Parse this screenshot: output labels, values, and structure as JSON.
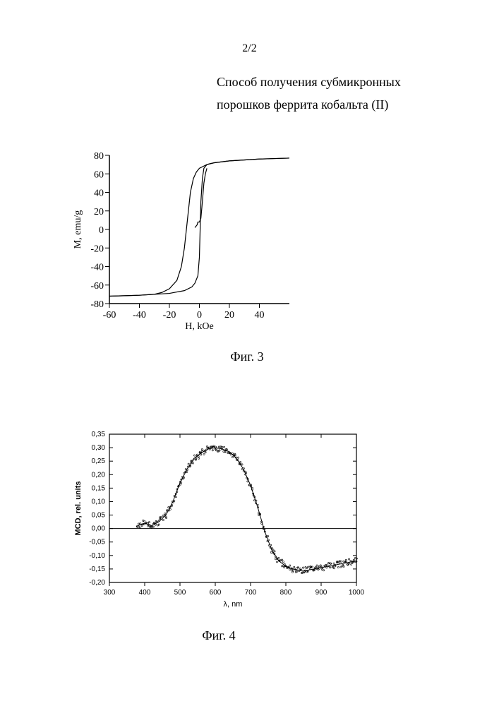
{
  "page": {
    "number": "2/2",
    "title_line1": "Способ получения субмикронных",
    "title_line2": "порошков феррита кобальта (II)"
  },
  "fig3": {
    "caption": "Фиг. 3",
    "type": "line-hysteresis",
    "xlabel": "H, kOe",
    "ylabel": "M, emu/g",
    "xlim": [
      -60,
      60
    ],
    "ylim": [
      -80,
      80
    ],
    "xticks": [
      -60,
      -40,
      -20,
      0,
      20,
      40
    ],
    "yticks": [
      -80,
      -60,
      -40,
      -20,
      0,
      20,
      40,
      60,
      80
    ],
    "line_color": "#000000",
    "line_width": 1.2,
    "background_color": "#ffffff",
    "tick_fontsize": 14,
    "label_fontsize": 14,
    "upper_branch": [
      [
        -60,
        -72
      ],
      [
        -50,
        -71.5
      ],
      [
        -40,
        -71
      ],
      [
        -30,
        -70
      ],
      [
        -25,
        -68
      ],
      [
        -20,
        -64
      ],
      [
        -15,
        -55
      ],
      [
        -12,
        -40
      ],
      [
        -10,
        -20
      ],
      [
        -8,
        10
      ],
      [
        -6,
        40
      ],
      [
        -4,
        55
      ],
      [
        -2,
        62
      ],
      [
        0,
        66
      ],
      [
        5,
        70
      ],
      [
        10,
        72
      ],
      [
        20,
        74
      ],
      [
        40,
        76
      ],
      [
        60,
        77
      ]
    ],
    "lower_branch": [
      [
        60,
        77
      ],
      [
        40,
        76
      ],
      [
        20,
        74
      ],
      [
        10,
        72
      ],
      [
        7,
        71
      ],
      [
        5,
        70
      ],
      [
        3,
        66
      ],
      [
        2,
        55
      ],
      [
        1,
        30
      ],
      [
        0.5,
        0
      ],
      [
        0,
        -30
      ],
      [
        -1,
        -50
      ],
      [
        -3,
        -58
      ],
      [
        -5,
        -62
      ],
      [
        -10,
        -66
      ],
      [
        -20,
        -69
      ],
      [
        -40,
        -71
      ],
      [
        -60,
        -72
      ]
    ],
    "virgin_curve": [
      [
        -3,
        2
      ],
      [
        -2,
        4
      ],
      [
        -1.5,
        5
      ],
      [
        -1,
        8
      ],
      [
        0,
        8
      ],
      [
        1,
        12
      ],
      [
        2,
        30
      ],
      [
        3,
        50
      ],
      [
        4,
        60
      ],
      [
        5,
        66
      ]
    ]
  },
  "fig4": {
    "caption": "Фиг. 4",
    "type": "scatter-line",
    "xlabel": "λ, nm",
    "ylabel": "MCD, rel. units",
    "xlim": [
      300,
      1000
    ],
    "ylim": [
      -0.2,
      0.35
    ],
    "xticks": [
      300,
      400,
      500,
      600,
      700,
      800,
      900,
      1000
    ],
    "yticks_labels": [
      "-0,20",
      "-0,15",
      "-0,10",
      "-0,05",
      "0,00",
      "0,05",
      "0,10",
      "0,15",
      "0,20",
      "0,25",
      "0,30",
      "0,35"
    ],
    "yticks": [
      -0.2,
      -0.15,
      -0.1,
      -0.05,
      0.0,
      0.05,
      0.1,
      0.15,
      0.2,
      0.25,
      0.3,
      0.35
    ],
    "line_color": "#000000",
    "marker_color": "#000000",
    "marker_size": 2.2,
    "line_width": 1.0,
    "grid": false,
    "background_color": "#ffffff",
    "tick_fontsize": 10,
    "label_fontsize": 11,
    "curve": [
      [
        380,
        0.01
      ],
      [
        400,
        0.02
      ],
      [
        420,
        0.01
      ],
      [
        440,
        0.025
      ],
      [
        460,
        0.05
      ],
      [
        480,
        0.1
      ],
      [
        500,
        0.17
      ],
      [
        520,
        0.22
      ],
      [
        540,
        0.26
      ],
      [
        560,
        0.28
      ],
      [
        580,
        0.295
      ],
      [
        600,
        0.3
      ],
      [
        620,
        0.295
      ],
      [
        640,
        0.285
      ],
      [
        660,
        0.26
      ],
      [
        680,
        0.22
      ],
      [
        700,
        0.16
      ],
      [
        720,
        0.08
      ],
      [
        740,
        -0.01
      ],
      [
        760,
        -0.08
      ],
      [
        780,
        -0.12
      ],
      [
        800,
        -0.14
      ],
      [
        820,
        -0.15
      ],
      [
        840,
        -0.155
      ],
      [
        860,
        -0.155
      ],
      [
        880,
        -0.15
      ],
      [
        900,
        -0.145
      ],
      [
        920,
        -0.14
      ],
      [
        940,
        -0.135
      ],
      [
        960,
        -0.13
      ],
      [
        980,
        -0.125
      ],
      [
        1000,
        -0.12
      ]
    ],
    "scatter_noise": 0.012
  }
}
